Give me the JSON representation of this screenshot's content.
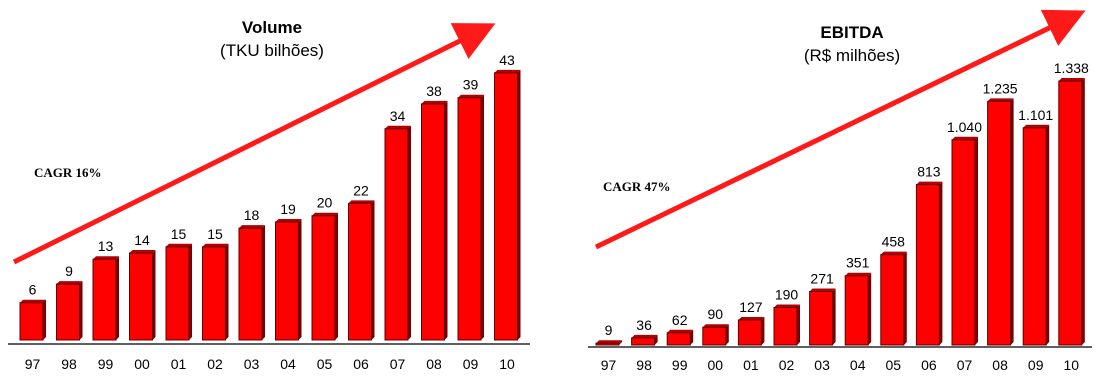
{
  "chart_data": [
    {
      "type": "bar",
      "title": "Volume",
      "subtitle": "(TKU bilhões)",
      "annotation": "CAGR 16%",
      "categories": [
        "97",
        "98",
        "99",
        "00",
        "01",
        "02",
        "03",
        "04",
        "05",
        "06",
        "07",
        "08",
        "09",
        "10"
      ],
      "values": [
        6,
        9,
        13,
        14,
        15,
        15,
        18,
        19,
        20,
        22,
        34,
        38,
        39,
        43
      ],
      "value_labels": [
        "6",
        "9",
        "13",
        "14",
        "15",
        "15",
        "18",
        "19",
        "20",
        "22",
        "34",
        "38",
        "39",
        "43"
      ],
      "ylim": [
        0,
        47
      ],
      "grid": false,
      "colors": {
        "bar": "#ff0000",
        "bar_side": "#7a0000",
        "arrow": "#ff1a1a"
      }
    },
    {
      "type": "bar",
      "title": "EBITDA",
      "subtitle": "(R$ milhões)",
      "annotation": "CAGR 47%",
      "categories": [
        "97",
        "98",
        "99",
        "00",
        "01",
        "02",
        "03",
        "04",
        "05",
        "06",
        "07",
        "08",
        "09",
        "10"
      ],
      "values": [
        9,
        36,
        62,
        90,
        127,
        190,
        271,
        351,
        458,
        813,
        1040,
        1235,
        1101,
        1338
      ],
      "value_labels": [
        "9",
        "36",
        "62",
        "90",
        "127",
        "190",
        "271",
        "351",
        "458",
        "813",
        "1.040",
        "1.235",
        "1.101",
        "1.338"
      ],
      "ylim": [
        0,
        1480
      ],
      "grid": false,
      "colors": {
        "bar": "#ff0000",
        "bar_side": "#7a0000",
        "arrow": "#ff1a1a"
      }
    }
  ]
}
